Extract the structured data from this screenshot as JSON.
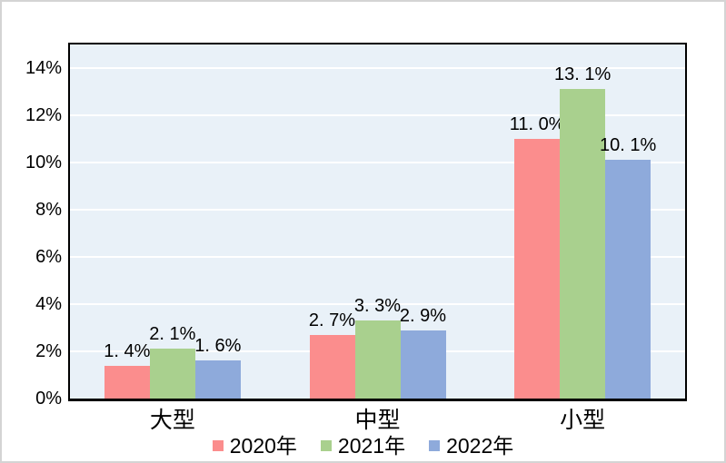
{
  "figure": {
    "background": "#FFFFFF",
    "border_color": "#D4D4D4",
    "title": ""
  },
  "chart_data": {
    "type": "bar",
    "title": "",
    "xlabel": "",
    "ylabel": "",
    "categories": [
      "大型",
      "中型",
      "小型"
    ],
    "series": [
      {
        "name": "2020年",
        "color": "#FB8D8D",
        "values": [
          1.4,
          2.7,
          11.0
        ],
        "labels": [
          "1. 4%",
          "2. 7%",
          "11. 0%"
        ]
      },
      {
        "name": "2021年",
        "color": "#A9D08E",
        "values": [
          2.1,
          3.3,
          13.1
        ],
        "labels": [
          "2. 1%",
          "3. 3%",
          "13. 1%"
        ]
      },
      {
        "name": "2022年",
        "color": "#8EAADB",
        "values": [
          1.6,
          2.9,
          10.1
        ],
        "labels": [
          "1. 6%",
          "2. 9%",
          "10. 1%"
        ]
      }
    ],
    "ylim": [
      0,
      15
    ],
    "yticks": [
      {
        "value": 0,
        "label": "0%"
      },
      {
        "value": 2,
        "label": "2%"
      },
      {
        "value": 4,
        "label": "4%"
      },
      {
        "value": 6,
        "label": "6%"
      },
      {
        "value": 8,
        "label": "8%"
      },
      {
        "value": 10,
        "label": "10%"
      },
      {
        "value": 12,
        "label": "12%"
      },
      {
        "value": 14,
        "label": "14%"
      }
    ],
    "gridlines": true,
    "gridline_color": "#FFFFFF",
    "plot_bg": "#E9F1F8",
    "axis_color": "#000000",
    "legend_position": "bottom"
  }
}
